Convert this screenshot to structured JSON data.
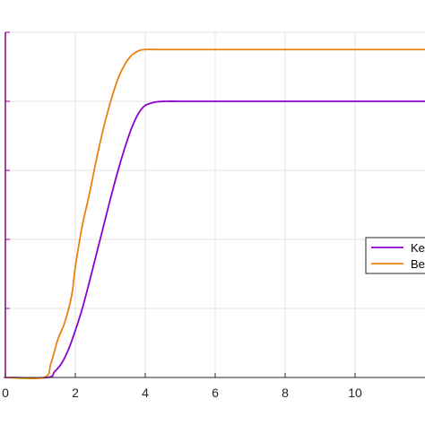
{
  "chart_data": {
    "type": "line",
    "xlim": [
      0,
      12
    ],
    "ylim": [
      0,
      5
    ],
    "xticks": [
      0,
      2,
      4,
      6,
      8,
      10
    ],
    "xtick_labels": [
      "0",
      "2",
      "4",
      "6",
      "8",
      "10"
    ],
    "yticks": [
      0,
      1,
      2,
      3,
      4,
      5
    ],
    "grid": true,
    "legend_placement": "right",
    "axis_color": "#8b008b",
    "series": [
      {
        "name": "Ke",
        "color": "#8b00d4",
        "x": [
          0,
          1.2,
          1.4,
          1.6,
          1.8,
          2.0,
          2.2,
          2.4,
          2.6,
          2.8,
          3.0,
          3.2,
          3.4,
          3.6,
          3.8,
          4.0,
          4.3,
          4.6,
          5.0,
          6.0,
          8.0,
          10.0,
          12.0
        ],
        "y": [
          0,
          0,
          0.08,
          0.2,
          0.4,
          0.68,
          1.0,
          1.38,
          1.78,
          2.18,
          2.58,
          2.96,
          3.3,
          3.6,
          3.82,
          3.94,
          3.99,
          4.0,
          4.0,
          4.0,
          4.0,
          4.0,
          4.0
        ]
      },
      {
        "name": "Be",
        "color": "#e8820e",
        "x": [
          0,
          1.1,
          1.3,
          1.5,
          1.7,
          1.9,
          2.0,
          2.2,
          2.4,
          2.6,
          2.8,
          3.0,
          3.2,
          3.4,
          3.6,
          3.8,
          4.0,
          4.3,
          4.6,
          5.0,
          6.0,
          8.0,
          10.0,
          12.0
        ],
        "y": [
          0,
          0,
          0.2,
          0.55,
          0.8,
          1.2,
          1.6,
          2.2,
          2.65,
          3.15,
          3.6,
          3.98,
          4.3,
          4.52,
          4.66,
          4.73,
          4.75,
          4.75,
          4.75,
          4.75,
          4.75,
          4.75,
          4.75,
          4.75
        ]
      }
    ]
  }
}
